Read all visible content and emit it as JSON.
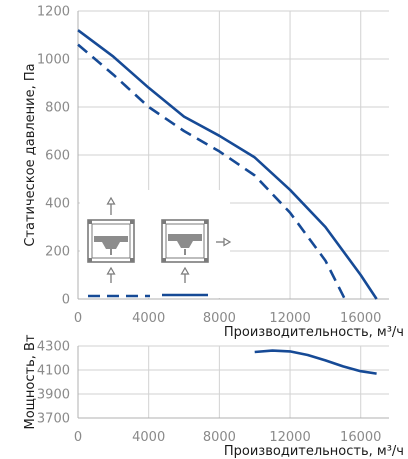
{
  "chart_data": [
    {
      "type": "line",
      "ylabel": "Статическое давление, Па",
      "xlabel": "Производительность, м³/ч",
      "xlim": [
        0,
        17600
      ],
      "ylim": [
        0,
        1200
      ],
      "x_ticks": [
        0,
        4000,
        8000,
        12000,
        16000
      ],
      "x_tick_labels": [
        "0",
        "4000",
        "8000",
        "12000",
        "16000"
      ],
      "y_ticks": [
        0,
        200,
        400,
        600,
        800,
        1000,
        1200
      ],
      "y_tick_labels": [
        "0",
        "200",
        "400",
        "600",
        "800",
        "1000",
        "1200"
      ],
      "grid": true,
      "color": "#164a96",
      "series": [
        {
          "style": "solid",
          "x": [
            0,
            2000,
            4000,
            6000,
            8000,
            10000,
            12000,
            14000,
            16000,
            16900
          ],
          "y": [
            1120,
            1010,
            880,
            760,
            680,
            590,
            455,
            300,
            100,
            0
          ]
        },
        {
          "style": "dashed",
          "x": [
            0,
            2000,
            4000,
            6000,
            8000,
            10000,
            12000,
            14000,
            15100
          ],
          "y": [
            1060,
            935,
            800,
            700,
            615,
            515,
            360,
            160,
            0
          ]
        }
      ],
      "legend": {
        "placement": "bottom-left",
        "entries": [
          {
            "style": "dashed",
            "icon": "axial-fan-vertical-flow-icon"
          },
          {
            "style": "solid",
            "icon": "axial-fan-horizontal-flow-icon"
          }
        ]
      }
    },
    {
      "type": "line",
      "ylabel": "Мощность, Вт",
      "xlabel": "Производительность, м³/ч",
      "xlim": [
        0,
        17600
      ],
      "ylim": [
        3700,
        4300
      ],
      "x_ticks": [
        0,
        4000,
        8000,
        12000,
        16000
      ],
      "x_tick_labels": [
        "0",
        "4000",
        "8000",
        "12000",
        "16000"
      ],
      "y_ticks": [
        3700,
        3900,
        4100,
        4300
      ],
      "y_tick_labels": [
        "3700",
        "3900",
        "4100",
        "4300"
      ],
      "grid": true,
      "color": "#164a96",
      "series": [
        {
          "style": "solid",
          "x": [
            10000,
            11000,
            12000,
            13000,
            14000,
            15000,
            16000,
            16900
          ],
          "y": [
            4250,
            4262,
            4255,
            4225,
            4180,
            4130,
            4090,
            4070
          ]
        }
      ]
    }
  ]
}
